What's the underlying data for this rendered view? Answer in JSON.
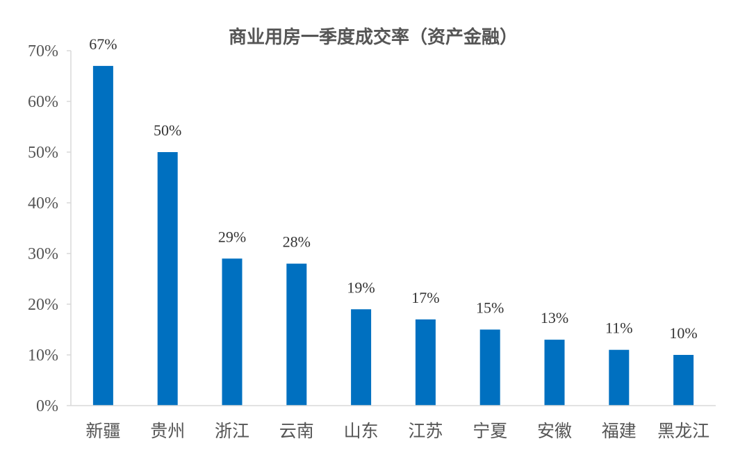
{
  "chart_data": {
    "type": "bar",
    "title": "商业用房一季度成交率（资产金融）",
    "categories": [
      "新疆",
      "贵州",
      "浙江",
      "云南",
      "山东",
      "江苏",
      "宁夏",
      "安徽",
      "福建",
      "黑龙江"
    ],
    "values": [
      0.67,
      0.5,
      0.29,
      0.28,
      0.19,
      0.17,
      0.15,
      0.13,
      0.11,
      0.1
    ],
    "data_labels": [
      "67%",
      "50%",
      "29%",
      "28%",
      "19%",
      "17%",
      "15%",
      "13%",
      "11%",
      "10%"
    ],
    "ylim": [
      0,
      0.7
    ],
    "yticks": [
      0,
      0.1,
      0.2,
      0.3,
      0.4,
      0.5,
      0.6,
      0.7
    ],
    "ytick_labels": [
      "0%",
      "10%",
      "20%",
      "30%",
      "40%",
      "50%",
      "60%",
      "70%"
    ],
    "xlabel": "",
    "ylabel": "",
    "grid": false,
    "legend": "none",
    "bar_color": "#0070C0",
    "axis_color": "#D9D9D9"
  }
}
